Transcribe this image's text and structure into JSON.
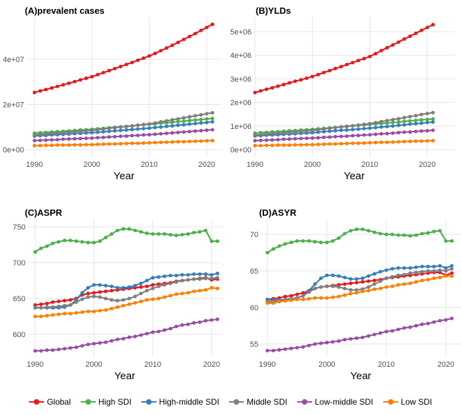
{
  "chart_data": [
    {
      "type": "line",
      "title": "(A)prevalent cases",
      "xlabel": "Year",
      "ylabel": "",
      "value_unit": "millions",
      "ylim": [
        0,
        57
      ],
      "x_ticks": [
        "1990",
        "2000",
        "2010",
        "2020"
      ],
      "y_ticks": [
        {
          "value": 0,
          "label": "0e+00"
        },
        {
          "value": 20,
          "label": "2e+07"
        },
        {
          "value": 40,
          "label": "4e+07"
        }
      ],
      "series": [
        {
          "name": "Global",
          "values": [
            25.3,
            26.0,
            26.6,
            27.3,
            28.0,
            28.7,
            29.4,
            30.1,
            30.9,
            31.6,
            32.3,
            33.2,
            34.1,
            35.0,
            35.9,
            36.8,
            37.7,
            38.6,
            39.6,
            40.5,
            41.5,
            42.6,
            43.8,
            45.0,
            46.2,
            47.5,
            48.8,
            50.1,
            51.4,
            52.8,
            54.1,
            55.5
          ]
        },
        {
          "name": "High SDI",
          "values": [
            7.3,
            7.5,
            7.6,
            7.8,
            8.0,
            8.1,
            8.3,
            8.5,
            8.7,
            8.8,
            9.0,
            9.2,
            9.4,
            9.7,
            9.9,
            10.1,
            10.3,
            10.5,
            10.8,
            11.0,
            11.2,
            11.4,
            11.7,
            11.9,
            12.1,
            12.4,
            12.6,
            12.9,
            13.1,
            13.3,
            13.6,
            13.8
          ]
        },
        {
          "name": "High-middle SDI",
          "values": [
            6.0,
            6.2,
            6.3,
            6.5,
            6.6,
            6.8,
            6.9,
            7.1,
            7.2,
            7.4,
            7.5,
            7.7,
            7.9,
            8.1,
            8.3,
            8.5,
            8.7,
            8.9,
            9.1,
            9.3,
            9.5,
            9.8,
            10.0,
            10.3,
            10.5,
            10.8,
            11.0,
            11.3,
            11.5,
            11.8,
            12.0,
            12.3
          ]
        },
        {
          "name": "Middle SDI",
          "values": [
            6.5,
            6.7,
            6.9,
            7.1,
            7.3,
            7.5,
            7.7,
            7.9,
            8.1,
            8.3,
            8.5,
            8.8,
            9.1,
            9.4,
            9.7,
            10.0,
            10.2,
            10.5,
            10.8,
            11.1,
            11.4,
            11.8,
            12.3,
            12.7,
            13.2,
            13.6,
            14.1,
            14.5,
            15.0,
            15.4,
            15.9,
            16.3
          ]
        },
        {
          "name": "Low-middle SDI",
          "values": [
            4.0,
            4.1,
            4.2,
            4.3,
            4.4,
            4.6,
            4.7,
            4.8,
            4.9,
            5.0,
            5.1,
            5.3,
            5.4,
            5.6,
            5.7,
            5.9,
            6.0,
            6.2,
            6.3,
            6.5,
            6.6,
            6.8,
            7.0,
            7.2,
            7.4,
            7.6,
            7.8,
            8.0,
            8.2,
            8.4,
            8.6,
            8.8
          ]
        },
        {
          "name": "Low SDI",
          "values": [
            1.8,
            1.8,
            1.9,
            1.9,
            2.0,
            2.0,
            2.0,
            2.1,
            2.1,
            2.2,
            2.2,
            2.3,
            2.4,
            2.5,
            2.5,
            2.6,
            2.7,
            2.8,
            2.8,
            2.9,
            3.0,
            3.1,
            3.2,
            3.3,
            3.4,
            3.5,
            3.5,
            3.6,
            3.7,
            3.8,
            3.9,
            4.0
          ]
        }
      ]
    },
    {
      "type": "line",
      "title": "(B)YLDs",
      "xlabel": "Year",
      "ylabel": "",
      "value_unit": "millions",
      "ylim": [
        0,
        5.6
      ],
      "x_ticks": [
        "1990",
        "2000",
        "2010",
        "2020"
      ],
      "y_ticks": [
        {
          "value": 0,
          "label": "0e+00"
        },
        {
          "value": 1,
          "label": "1e+06"
        },
        {
          "value": 2,
          "label": "2e+06"
        },
        {
          "value": 3,
          "label": "3e+06"
        },
        {
          "value": 4,
          "label": "4e+06"
        },
        {
          "value": 5,
          "label": "5e+06"
        }
      ],
      "series": [
        {
          "name": "Global",
          "values": [
            2.42,
            2.49,
            2.56,
            2.62,
            2.69,
            2.76,
            2.83,
            2.9,
            2.96,
            3.03,
            3.1,
            3.18,
            3.27,
            3.35,
            3.44,
            3.52,
            3.61,
            3.69,
            3.78,
            3.86,
            3.95,
            4.07,
            4.2,
            4.32,
            4.44,
            4.56,
            4.69,
            4.81,
            4.93,
            5.06,
            5.18,
            5.3
          ]
        },
        {
          "name": "High SDI",
          "values": [
            0.7,
            0.72,
            0.73,
            0.75,
            0.76,
            0.78,
            0.8,
            0.81,
            0.83,
            0.84,
            0.86,
            0.88,
            0.9,
            0.92,
            0.94,
            0.97,
            0.99,
            1.01,
            1.03,
            1.05,
            1.07,
            1.09,
            1.11,
            1.13,
            1.15,
            1.17,
            1.2,
            1.22,
            1.24,
            1.26,
            1.28,
            1.3
          ]
        },
        {
          "name": "High-middle SDI",
          "values": [
            0.58,
            0.59,
            0.61,
            0.62,
            0.63,
            0.65,
            0.66,
            0.67,
            0.69,
            0.7,
            0.72,
            0.74,
            0.76,
            0.78,
            0.8,
            0.82,
            0.83,
            0.85,
            0.87,
            0.89,
            0.91,
            0.93,
            0.96,
            0.98,
            1.0,
            1.03,
            1.05,
            1.08,
            1.1,
            1.12,
            1.15,
            1.17
          ]
        },
        {
          "name": "Middle SDI",
          "values": [
            0.62,
            0.64,
            0.66,
            0.68,
            0.7,
            0.72,
            0.73,
            0.75,
            0.77,
            0.79,
            0.81,
            0.84,
            0.87,
            0.9,
            0.93,
            0.96,
            0.98,
            1.01,
            1.04,
            1.07,
            1.1,
            1.14,
            1.19,
            1.23,
            1.27,
            1.31,
            1.36,
            1.4,
            1.44,
            1.49,
            1.53,
            1.57
          ]
        },
        {
          "name": "Low-middle SDI",
          "values": [
            0.38,
            0.39,
            0.4,
            0.41,
            0.42,
            0.44,
            0.45,
            0.46,
            0.47,
            0.48,
            0.49,
            0.5,
            0.52,
            0.53,
            0.55,
            0.56,
            0.57,
            0.59,
            0.6,
            0.62,
            0.63,
            0.65,
            0.67,
            0.68,
            0.7,
            0.72,
            0.74,
            0.75,
            0.77,
            0.79,
            0.8,
            0.82
          ]
        },
        {
          "name": "Low SDI",
          "values": [
            0.17,
            0.17,
            0.18,
            0.18,
            0.19,
            0.19,
            0.19,
            0.2,
            0.2,
            0.21,
            0.21,
            0.22,
            0.23,
            0.24,
            0.24,
            0.25,
            0.26,
            0.27,
            0.27,
            0.28,
            0.29,
            0.3,
            0.31,
            0.31,
            0.32,
            0.33,
            0.34,
            0.35,
            0.36,
            0.36,
            0.37,
            0.38
          ]
        }
      ]
    },
    {
      "type": "line",
      "title": "(C)ASPR",
      "xlabel": "Year",
      "ylabel": "",
      "ylim": [
        570,
        755
      ],
      "x_ticks": [
        "1990",
        "2000",
        "2010",
        "2020"
      ],
      "y_ticks": [
        {
          "value": 600,
          "label": "600"
        },
        {
          "value": 650,
          "label": "650"
        },
        {
          "value": 700,
          "label": "700"
        },
        {
          "value": 750,
          "label": "750"
        }
      ],
      "series": [
        {
          "name": "Global",
          "values": [
            641,
            642,
            643,
            645,
            646,
            647,
            648,
            650,
            655,
            657,
            658,
            659,
            660,
            661,
            662,
            663,
            664,
            665,
            666,
            667,
            669,
            670,
            671,
            672,
            674,
            675,
            676,
            677,
            678,
            679,
            676,
            677
          ]
        },
        {
          "name": "High SDI",
          "values": [
            715,
            720,
            723,
            727,
            729,
            731,
            731,
            730,
            729,
            728,
            728,
            730,
            735,
            740,
            745,
            747,
            747,
            745,
            743,
            741,
            740,
            740,
            740,
            739,
            738,
            739,
            740,
            742,
            743,
            745,
            730,
            730
          ]
        },
        {
          "name": "High-middle SDI",
          "values": [
            638,
            637,
            637,
            637,
            637,
            638,
            641,
            648,
            658,
            665,
            669,
            669,
            668,
            667,
            665,
            665,
            666,
            668,
            671,
            675,
            679,
            680,
            681,
            682,
            682,
            683,
            683,
            684,
            684,
            684,
            683,
            685
          ]
        },
        {
          "name": "Middle SDI",
          "values": [
            637,
            637,
            638,
            638,
            639,
            640,
            641,
            645,
            649,
            652,
            653,
            652,
            650,
            648,
            647,
            648,
            650,
            653,
            657,
            661,
            664,
            667,
            669,
            671,
            673,
            675,
            676,
            677,
            677,
            678,
            678,
            679
          ]
        },
        {
          "name": "Low-middle SDI",
          "values": [
            577,
            577,
            578,
            578,
            579,
            580,
            581,
            582,
            584,
            586,
            587,
            588,
            589,
            591,
            593,
            594,
            596,
            597,
            599,
            601,
            603,
            604,
            606,
            608,
            611,
            613,
            614,
            616,
            617,
            619,
            620,
            621
          ]
        },
        {
          "name": "Low SDI",
          "values": [
            625,
            625,
            626,
            627,
            628,
            629,
            629,
            630,
            631,
            632,
            632,
            633,
            634,
            636,
            638,
            640,
            642,
            644,
            646,
            648,
            649,
            650,
            652,
            654,
            656,
            657,
            658,
            660,
            661,
            662,
            665,
            664
          ]
        }
      ]
    },
    {
      "type": "line",
      "title": "(D)ASYR",
      "xlabel": "Year",
      "ylabel": "",
      "ylim": [
        53.5,
        71.2
      ],
      "x_ticks": [
        "1990",
        "2000",
        "2010",
        "2020"
      ],
      "y_ticks": [
        {
          "value": 55,
          "label": "55"
        },
        {
          "value": 60,
          "label": "60"
        },
        {
          "value": 65,
          "label": "65"
        },
        {
          "value": 70,
          "label": "70"
        }
      ],
      "series": [
        {
          "name": "Global",
          "values": [
            61.1,
            61.2,
            61.3,
            61.5,
            61.6,
            61.8,
            62.0,
            62.3,
            62.6,
            62.8,
            62.9,
            63.0,
            63.1,
            63.2,
            63.3,
            63.4,
            63.5,
            63.6,
            63.7,
            63.8,
            64.0,
            64.1,
            64.2,
            64.3,
            64.4,
            64.5,
            64.6,
            64.7,
            64.8,
            64.8,
            64.4,
            64.7
          ]
        },
        {
          "name": "High SDI",
          "values": [
            67.5,
            68.0,
            68.4,
            68.7,
            68.9,
            69.1,
            69.1,
            69.1,
            69.0,
            68.9,
            68.9,
            69.1,
            69.5,
            70.1,
            70.5,
            70.7,
            70.7,
            70.5,
            70.3,
            70.1,
            70.0,
            70.0,
            69.9,
            69.9,
            69.8,
            69.9,
            70.1,
            70.2,
            70.4,
            70.5,
            69.1,
            69.1
          ]
        },
        {
          "name": "High-middle SDI",
          "values": [
            61.1,
            61.0,
            61.0,
            61.1,
            61.2,
            61.3,
            61.6,
            62.3,
            63.2,
            64.0,
            64.4,
            64.4,
            64.3,
            64.1,
            63.9,
            63.9,
            64.0,
            64.3,
            64.6,
            64.9,
            65.1,
            65.3,
            65.4,
            65.4,
            65.4,
            65.5,
            65.6,
            65.6,
            65.6,
            65.7,
            65.4,
            65.7
          ]
        },
        {
          "name": "Middle SDI",
          "values": [
            60.8,
            60.8,
            60.9,
            61.0,
            61.1,
            61.3,
            61.6,
            62.1,
            62.6,
            62.8,
            62.9,
            62.9,
            62.8,
            62.6,
            62.4,
            62.4,
            62.5,
            62.8,
            63.2,
            63.6,
            64.0,
            64.2,
            64.4,
            64.5,
            64.7,
            64.8,
            64.9,
            65.0,
            65.0,
            65.1,
            65.0,
            65.3
          ]
        },
        {
          "name": "Low-middle SDI",
          "values": [
            54.1,
            54.1,
            54.2,
            54.3,
            54.4,
            54.5,
            54.6,
            54.8,
            55.0,
            55.1,
            55.2,
            55.3,
            55.4,
            55.6,
            55.7,
            55.8,
            55.9,
            56.1,
            56.3,
            56.5,
            56.7,
            56.8,
            57.0,
            57.2,
            57.3,
            57.5,
            57.7,
            57.8,
            58.0,
            58.2,
            58.3,
            58.5
          ]
        },
        {
          "name": "Low SDI",
          "values": [
            60.6,
            60.6,
            60.8,
            60.9,
            61.0,
            61.1,
            61.1,
            61.2,
            61.3,
            61.3,
            61.3,
            61.4,
            61.5,
            61.7,
            61.9,
            62.0,
            62.2,
            62.3,
            62.5,
            62.6,
            62.8,
            62.9,
            63.1,
            63.2,
            63.3,
            63.5,
            63.7,
            63.8,
            64.0,
            64.1,
            64.3,
            64.3
          ]
        }
      ]
    }
  ],
  "years": [
    1990,
    2021
  ],
  "legend": {
    "placement": "bottom",
    "items": [
      {
        "label": "Global",
        "color": "#E41A1C"
      },
      {
        "label": "High SDI",
        "color": "#4DAF4A"
      },
      {
        "label": "High-middle SDI",
        "color": "#377EB8"
      },
      {
        "label": "Middle SDI",
        "color": "#7F7F7F"
      },
      {
        "label": "Low-middle SDI",
        "color": "#984EA3"
      },
      {
        "label": "Low SDI",
        "color": "#FF7F00"
      }
    ]
  }
}
